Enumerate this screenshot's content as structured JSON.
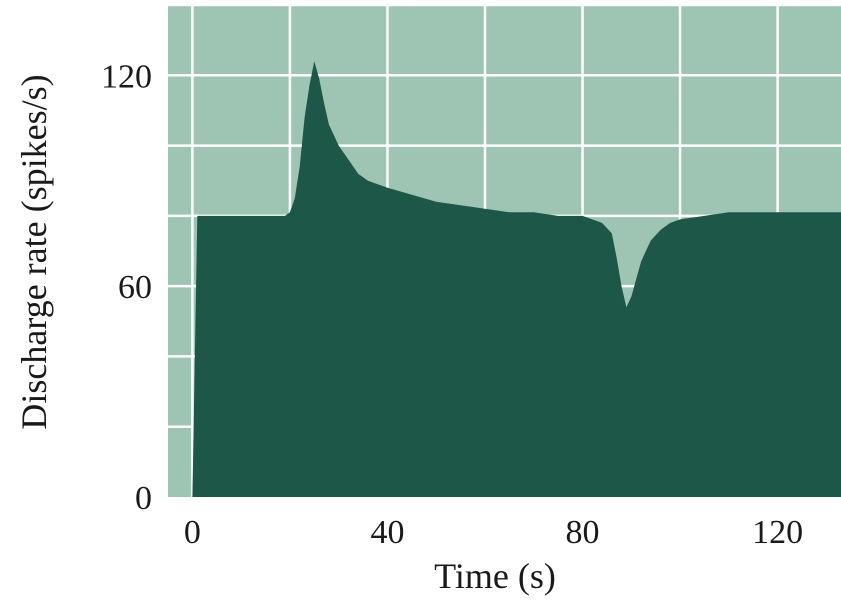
{
  "chart_data": {
    "type": "area",
    "title": "",
    "xlabel": "Time (s)",
    "ylabel": "Discharge rate (spikes/s)",
    "xlim": [
      -5,
      133
    ],
    "ylim": [
      0,
      140
    ],
    "xticks": [
      0,
      40,
      80,
      120
    ],
    "yticks": [
      0,
      60,
      120
    ],
    "xtick_labels": [
      "0",
      "40",
      "80",
      "120"
    ],
    "ytick_labels": [
      "0",
      "60",
      "120"
    ],
    "grid": true,
    "colors": {
      "background": "#9ec4b3",
      "fill": "#1d5747",
      "grid": "#ffffff"
    },
    "series": [
      {
        "x": [
          0,
          1,
          19,
          20,
          21,
          22,
          23,
          24,
          25,
          26,
          27,
          28,
          30,
          32,
          34,
          36,
          38,
          40,
          45,
          50,
          55,
          60,
          65,
          70,
          75,
          80,
          82,
          84,
          86,
          87,
          88,
          89,
          90,
          91,
          92,
          93,
          94,
          96,
          98,
          100,
          105,
          110,
          115,
          120,
          125,
          130,
          133
        ],
        "y": [
          0,
          80,
          80,
          81,
          85,
          94,
          108,
          117,
          124,
          119,
          112,
          106,
          100,
          96,
          92,
          90,
          89,
          88,
          86,
          84,
          83,
          82,
          81,
          81,
          80,
          80,
          79,
          78,
          75,
          68,
          60,
          54,
          57,
          62,
          67,
          70,
          73,
          76,
          78,
          79,
          80,
          81,
          81,
          81,
          81,
          81,
          81
        ]
      }
    ]
  }
}
